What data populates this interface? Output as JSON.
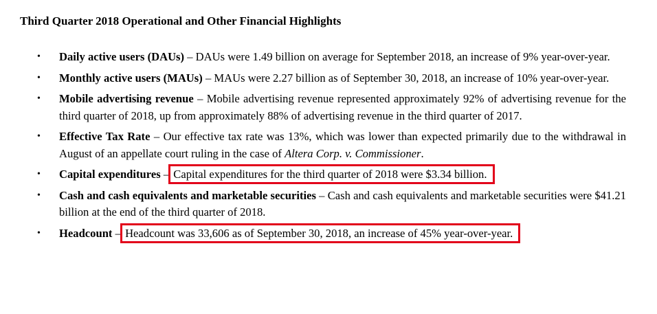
{
  "title": "Third Quarter 2018 Operational and Other Financial Highlights",
  "bullet_char": "•",
  "dash": "–",
  "items": [
    {
      "label": "Daily active users (DAUs)",
      "text": "DAUs were 1.49 billion on average for September 2018, an increase of 9% year-over-year."
    },
    {
      "label": "Monthly active users (MAUs)",
      "text": "MAUs were 2.27 billion as of September 30, 2018, an increase of 10% year-over-year."
    },
    {
      "label": "Mobile advertising revenue",
      "text": "Mobile advertising revenue represented approximately 92% of advertising revenue for the third quarter of 2018, up from approximately 88% of advertising revenue in the third quarter of 2017."
    },
    {
      "label": "Effective Tax Rate",
      "text": "Our effective tax rate was 13%, which was lower than expected primarily due to the withdrawal in August of an appellate court ruling in the case of",
      "italic": "Altera Corp. v. Commissioner",
      "end": "."
    },
    {
      "label": "Capital expenditures",
      "text": "Capital expenditures for the third quarter of 2018 were $3.34 billion."
    },
    {
      "label": "Cash and cash equivalents and marketable securities",
      "text": "Cash and cash equivalents and marketable securities were $41.21 billion at the end of the third quarter of 2018."
    },
    {
      "label": "Headcount",
      "text": "Headcount was 33,606 as of September 30, 2018, an increase of 45% year-over-year."
    }
  ]
}
